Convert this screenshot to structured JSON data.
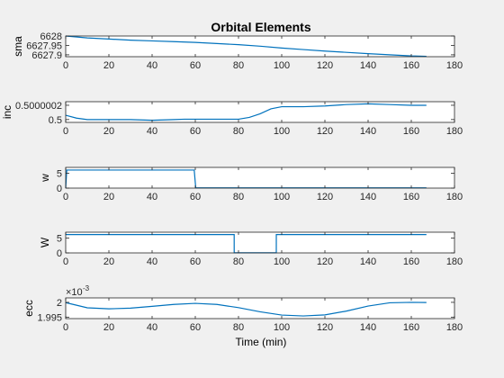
{
  "figure": {
    "title": "Orbital Elements",
    "xlabel": "Time (min)",
    "background": "#f0f0f0",
    "axes_background": "#ffffff",
    "line_color": "#0072bd",
    "grid": false
  },
  "chart_data": [
    {
      "type": "line",
      "ylabel": "sma",
      "xlim": [
        0,
        180
      ],
      "xticks": [
        0,
        20,
        40,
        60,
        80,
        100,
        120,
        140,
        160,
        180
      ],
      "xtick_labels": [
        "0",
        "20",
        "40",
        "60",
        "80",
        "100",
        "120",
        "140",
        "160",
        "180"
      ],
      "ylim": [
        6627.89,
        6628.0
      ],
      "yticks": [
        6627.9,
        6627.95,
        6628
      ],
      "ytick_labels": [
        "6627.9",
        "6627.95",
        "6628"
      ],
      "series": [
        {
          "x": [
            0,
            10,
            20,
            30,
            40,
            50,
            60,
            70,
            80,
            90,
            100,
            110,
            120,
            130,
            140,
            150,
            160,
            167
          ],
          "y": [
            6628.0,
            6627.99,
            6627.984,
            6627.978,
            6627.974,
            6627.97,
            6627.966,
            6627.96,
            6627.954,
            6627.946,
            6627.936,
            6627.928,
            6627.92,
            6627.913,
            6627.906,
            6627.9,
            6627.894,
            6627.892
          ]
        }
      ]
    },
    {
      "type": "line",
      "ylabel": "inc",
      "xlim": [
        0,
        180
      ],
      "xticks": [
        0,
        20,
        40,
        60,
        80,
        100,
        120,
        140,
        160,
        180
      ],
      "xtick_labels": [
        "0",
        "20",
        "40",
        "60",
        "80",
        "100",
        "120",
        "140",
        "160",
        "180"
      ],
      "ylim": [
        0.49999996,
        0.50000025
      ],
      "yticks": [
        0.5,
        0.5000002
      ],
      "ytick_labels": [
        "0.5",
        "0.5000002"
      ],
      "series": [
        {
          "x": [
            0,
            5,
            10,
            20,
            30,
            40,
            50,
            55,
            60,
            70,
            80,
            85,
            90,
            95,
            100,
            110,
            120,
            130,
            140,
            150,
            160,
            167
          ],
          "y": [
            0.50000006,
            0.50000002,
            0.4999999995,
            0.4999999995,
            0.4999999995,
            0.49999999,
            0.4999999995,
            0.500000005,
            0.500000005,
            0.500000005,
            0.500000005,
            0.50000003,
            0.50000008,
            0.50000015,
            0.50000018,
            0.50000018,
            0.50000019,
            0.50000021,
            0.50000022,
            0.50000021,
            0.5000002,
            0.5000002
          ]
        }
      ]
    },
    {
      "type": "line",
      "ylabel": "w",
      "xlim": [
        0,
        180
      ],
      "xticks": [
        0,
        20,
        40,
        60,
        80,
        100,
        120,
        140,
        160,
        180
      ],
      "xtick_labels": [
        "0",
        "20",
        "40",
        "60",
        "80",
        "100",
        "120",
        "140",
        "160",
        "180"
      ],
      "ylim": [
        0,
        7
      ],
      "yticks": [
        0,
        5
      ],
      "ytick_labels": [
        "0",
        "5"
      ],
      "series": [
        {
          "x": [
            0,
            0.5,
            59.5,
            60.2,
            167
          ],
          "y": [
            0,
            6.1,
            6.1,
            0.1,
            0.1
          ]
        }
      ]
    },
    {
      "type": "line",
      "ylabel": "W",
      "xlim": [
        0,
        180
      ],
      "xticks": [
        0,
        20,
        40,
        60,
        80,
        100,
        120,
        140,
        160,
        180
      ],
      "xtick_labels": [
        "0",
        "20",
        "40",
        "60",
        "80",
        "100",
        "120",
        "140",
        "160",
        "180"
      ],
      "ylim": [
        0,
        7
      ],
      "yticks": [
        0,
        5
      ],
      "ytick_labels": [
        "0",
        "5"
      ],
      "series": [
        {
          "x": [
            0,
            78.0,
            78.01,
            97.5,
            97.51,
            167
          ],
          "y": [
            6.2,
            6.2,
            0.05,
            0.05,
            6.2,
            6.2
          ]
        }
      ]
    },
    {
      "type": "line",
      "ylabel": "ecc",
      "exponent_label": "×10",
      "exponent_power": "-3",
      "xlim": [
        0,
        180
      ],
      "xticks": [
        0,
        20,
        40,
        60,
        80,
        100,
        120,
        140,
        160,
        180
      ],
      "xtick_labels": [
        "0",
        "20",
        "40",
        "60",
        "80",
        "100",
        "120",
        "140",
        "160",
        "180"
      ],
      "ylim": [
        0.0019945,
        0.0020015
      ],
      "yticks": [
        0.001995,
        0.002
      ],
      "ytick_labels": [
        "1.995",
        "2"
      ],
      "series": [
        {
          "x": [
            0,
            10,
            20,
            30,
            40,
            50,
            60,
            70,
            80,
            90,
            100,
            110,
            120,
            130,
            140,
            150,
            160,
            167
          ],
          "y": [
            0.0019999,
            0.00199815,
            0.0019978,
            0.00199805,
            0.00199865,
            0.0019993,
            0.00199965,
            0.0019993,
            0.0019982,
            0.0019968,
            0.0019957,
            0.0019954,
            0.00199575,
            0.00199705,
            0.00199875,
            0.00199985,
            0.002,
            0.00199995
          ]
        }
      ]
    }
  ]
}
